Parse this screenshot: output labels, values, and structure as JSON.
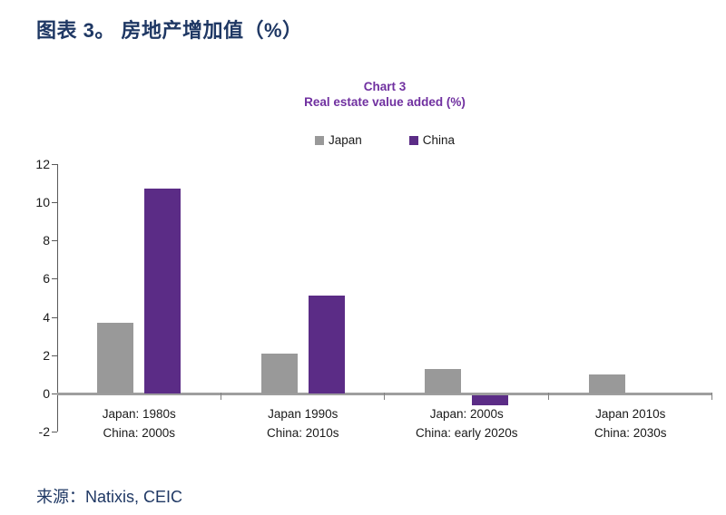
{
  "page": {
    "title": "图表 3。 房地产增加值（%）",
    "source": "来源：Natixis, CEIC"
  },
  "chart_data": {
    "type": "bar",
    "title": "Chart 3",
    "subtitle": "Real estate value added (%)",
    "categories": [
      [
        "Japan: 1980s",
        "China: 2000s"
      ],
      [
        "Japan 1990s",
        "China: 2010s"
      ],
      [
        "Japan: 2000s",
        "China: early 2020s"
      ],
      [
        "Japan 2010s",
        "China: 2030s"
      ]
    ],
    "series": [
      {
        "name": "Japan",
        "color": "#999999",
        "values": [
          3.7,
          2.1,
          1.3,
          1.0
        ]
      },
      {
        "name": "China",
        "color": "#5B2C86",
        "values": [
          10.7,
          5.1,
          -0.5,
          null
        ]
      }
    ],
    "ylim": [
      -2,
      12
    ],
    "ytick_step": 2,
    "legend_position": "top-center",
    "grid": false
  },
  "colors": {
    "heading_navy": "#1F3864",
    "chart_title_purple": "#7030A0",
    "axis_line": "#595959",
    "zero_line": "#9E9E9E",
    "text_dark": "#1A1A1A"
  }
}
